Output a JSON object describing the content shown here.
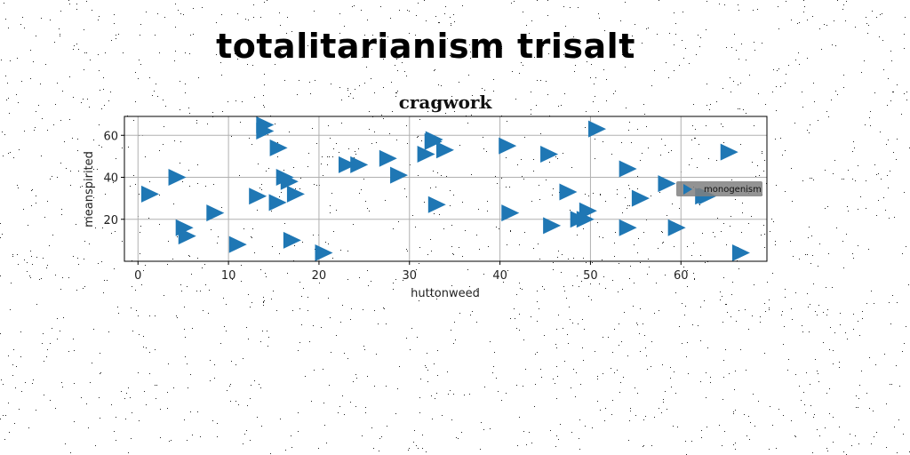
{
  "page": {
    "title": "totalitarianism trisalt"
  },
  "colors": {
    "marker": "#1f77b4",
    "grid": "#b0b0b0",
    "legend_bg": "#808080"
  },
  "chart_data": {
    "type": "scatter",
    "title": "cragwork",
    "xlabel": "huttonweed",
    "ylabel": "meanspirited",
    "xlim": [
      -1.5,
      69.5
    ],
    "ylim": [
      0,
      69
    ],
    "xticks": [
      0,
      10,
      20,
      30,
      40,
      50,
      60
    ],
    "yticks": [
      20,
      40,
      60
    ],
    "grid": true,
    "legend_position": "right",
    "marker": "triangle-right",
    "series": [
      {
        "name": "monogenism",
        "points": [
          [
            1.2,
            32
          ],
          [
            4.2,
            40
          ],
          [
            5.0,
            16
          ],
          [
            5.3,
            12
          ],
          [
            8.4,
            23
          ],
          [
            10.9,
            8
          ],
          [
            13.1,
            31
          ],
          [
            13.9,
            65
          ],
          [
            13.9,
            62
          ],
          [
            15.3,
            28
          ],
          [
            15.4,
            54
          ],
          [
            16.1,
            40
          ],
          [
            16.6,
            38
          ],
          [
            16.9,
            10
          ],
          [
            17.3,
            32
          ],
          [
            20.4,
            4
          ],
          [
            23.0,
            46
          ],
          [
            24.3,
            46
          ],
          [
            27.5,
            49
          ],
          [
            28.7,
            41
          ],
          [
            31.7,
            51
          ],
          [
            32.5,
            57
          ],
          [
            32.6,
            58
          ],
          [
            32.9,
            27
          ],
          [
            33.8,
            53
          ],
          [
            40.7,
            55
          ],
          [
            41.0,
            23
          ],
          [
            45.3,
            51
          ],
          [
            45.6,
            17
          ],
          [
            47.4,
            33
          ],
          [
            48.6,
            20
          ],
          [
            49.3,
            20
          ],
          [
            49.6,
            24
          ],
          [
            50.6,
            63
          ],
          [
            54.0,
            44
          ],
          [
            54.0,
            16
          ],
          [
            55.4,
            30
          ],
          [
            58.3,
            37
          ],
          [
            59.4,
            16
          ],
          [
            62.4,
            31
          ],
          [
            62.8,
            31
          ],
          [
            65.2,
            52
          ],
          [
            66.5,
            4
          ]
        ]
      }
    ]
  }
}
